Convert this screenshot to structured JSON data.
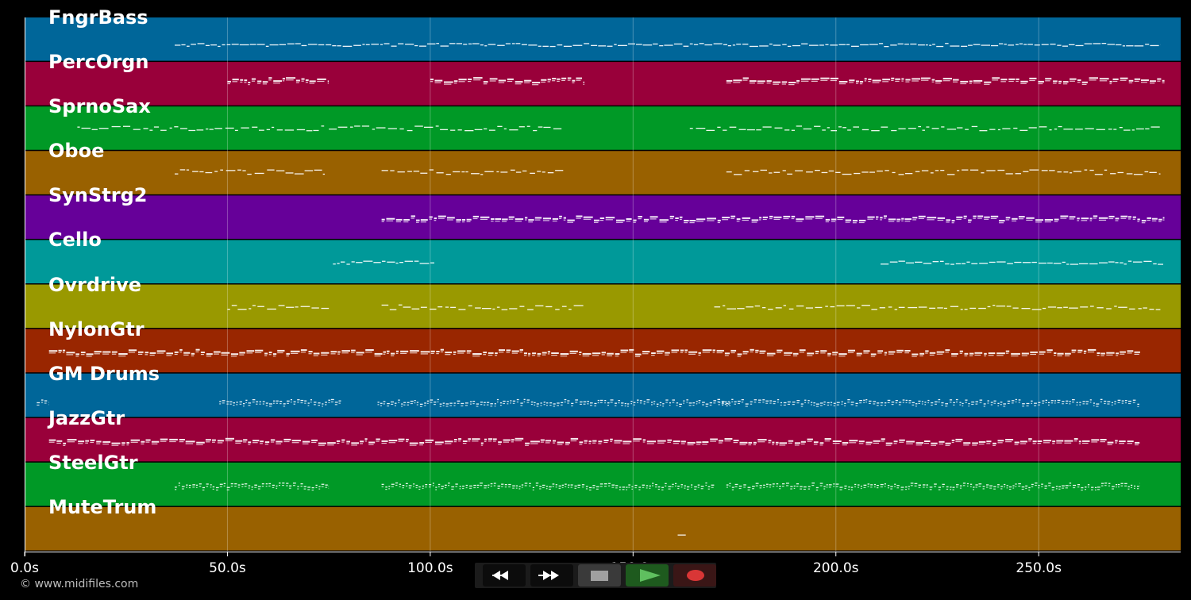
{
  "copyright": "© www.midifiles.com",
  "timeline": {
    "duration": 285,
    "tick_labels": [
      "0.0s",
      "50.0s",
      "100.0s",
      "150.0s",
      "200.0s",
      "250.0s"
    ],
    "tick_values": [
      0,
      50,
      100,
      150,
      200,
      250
    ]
  },
  "tracks": [
    {
      "name": "FngrBass",
      "color": "#006699",
      "segments": [
        [
          37,
          280
        ]
      ],
      "style": "line",
      "offset": 6
    },
    {
      "name": "PercOrgn",
      "color": "#99003a",
      "segments": [
        [
          50,
          75
        ],
        [
          100,
          138
        ],
        [
          173,
          281
        ]
      ],
      "style": "thick",
      "offset": -6
    },
    {
      "name": "SprnoSax",
      "color": "#009926",
      "segments": [
        [
          13,
          74
        ],
        [
          75,
          133
        ],
        [
          164,
          280
        ]
      ],
      "style": "dash",
      "offset": -1
    },
    {
      "name": "Oboe",
      "color": "#996100",
      "segments": [
        [
          37,
          74
        ],
        [
          88,
          133
        ],
        [
          173,
          280
        ]
      ],
      "style": "dash",
      "offset": -2
    },
    {
      "name": "SynStrg2",
      "color": "#660099",
      "segments": [
        [
          88,
          281
        ]
      ],
      "style": "thick",
      "offset": 0
    },
    {
      "name": "Cello",
      "color": "#009999",
      "segments": [
        [
          76,
          101
        ],
        [
          211,
          281
        ]
      ],
      "style": "line",
      "offset": 0
    },
    {
      "name": "Ovrdrive",
      "color": "#999900",
      "segments": [
        [
          50,
          75
        ],
        [
          88,
          138
        ],
        [
          170,
          280
        ]
      ],
      "style": "dash",
      "offset": 0
    },
    {
      "name": "NylonGtr",
      "color": "#992600",
      "segments": [
        [
          6,
          275
        ]
      ],
      "style": "thick",
      "offset": 0
    },
    {
      "name": "GM Drums",
      "color": "#006699",
      "segments": [
        [
          3,
          6
        ],
        [
          48,
          78
        ],
        [
          87,
          174
        ],
        [
          171,
          275
        ]
      ],
      "style": "dots",
      "offset": 7
    },
    {
      "name": "JazzGtr",
      "color": "#99003a",
      "segments": [
        [
          6,
          275
        ]
      ],
      "style": "thick",
      "offset": 0
    },
    {
      "name": "SteelGtr",
      "color": "#009926",
      "segments": [
        [
          37,
          75
        ],
        [
          88,
          170
        ],
        [
          173,
          275
        ]
      ],
      "style": "dots",
      "offset": 0
    },
    {
      "name": "MuteTrum",
      "color": "#996100",
      "segments": [
        [
          161,
          163
        ]
      ],
      "style": "line",
      "offset": 8
    }
  ],
  "transport": {
    "buttons": [
      {
        "name": "rewind",
        "icon": "rewind-icon",
        "bg": "#0c0c0c",
        "fg": "#ffffff"
      },
      {
        "name": "fast-forward",
        "icon": "fast-forward-icon",
        "bg": "#0c0c0c",
        "fg": "#ffffff"
      },
      {
        "name": "stop",
        "icon": "stop-icon",
        "bg": "#3a3a3a",
        "fg": "#a0a0a0"
      },
      {
        "name": "play",
        "icon": "play-icon",
        "bg": "#1e5a1e",
        "fg": "#5fbf5f"
      },
      {
        "name": "record",
        "icon": "record-icon",
        "bg": "#3a1616",
        "fg": "#d93636"
      }
    ]
  }
}
